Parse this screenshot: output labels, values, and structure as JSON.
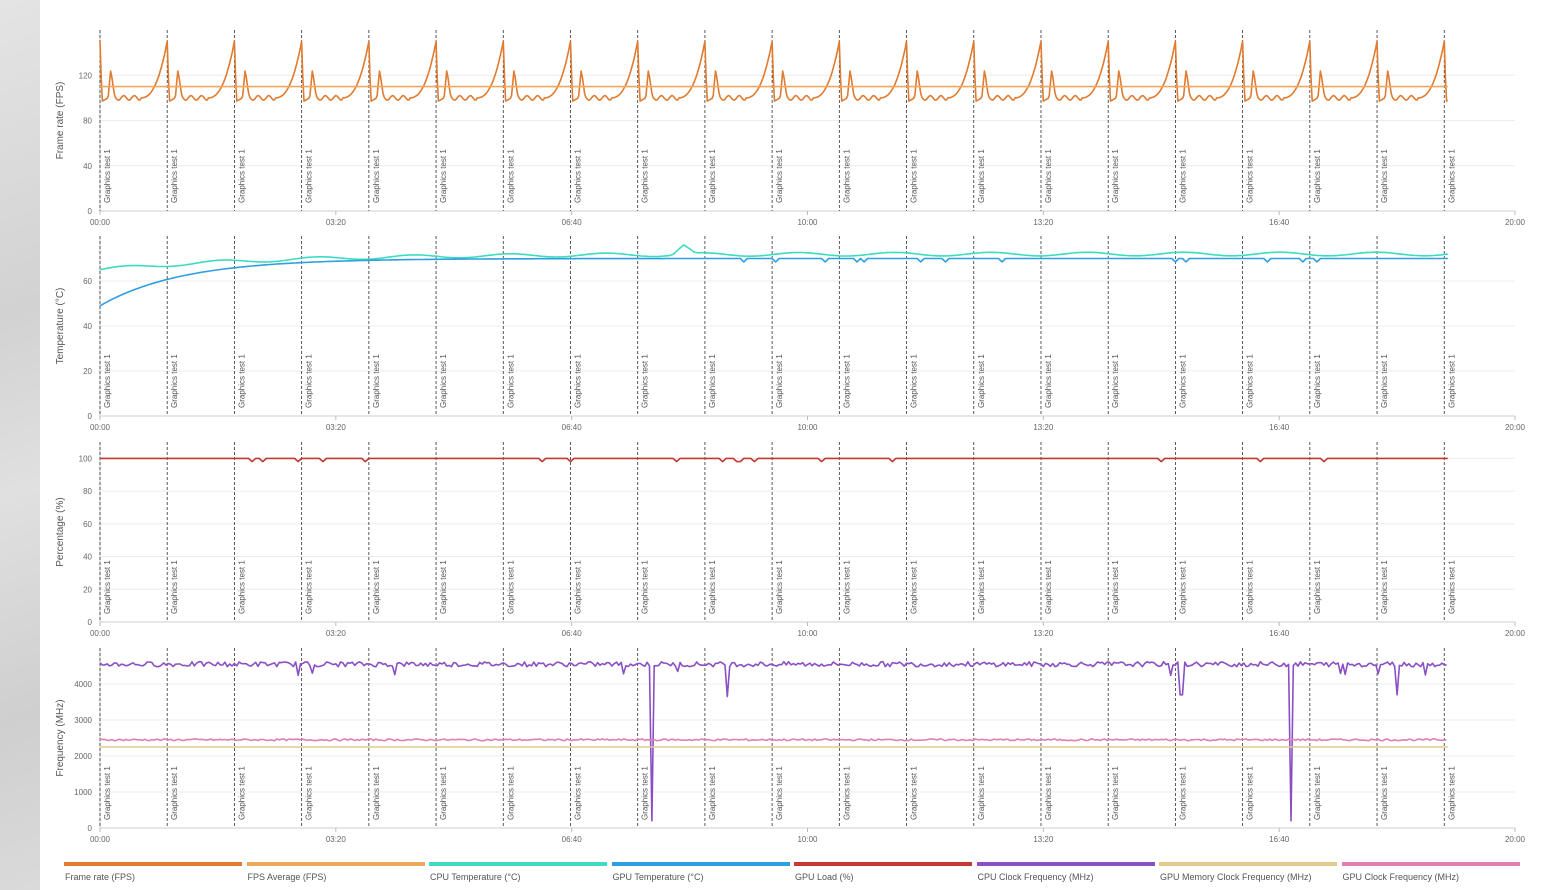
{
  "chart_data": {
    "type": "line",
    "xlabel": "",
    "x_ticks": [
      "00:00",
      "03:20",
      "06:40",
      "10:00",
      "13:20",
      "16:40",
      "20:00"
    ],
    "xlim_seconds": [
      0,
      1200
    ],
    "markers": {
      "label": "Graphics test 1",
      "times_seconds": [
        0,
        57,
        114,
        171,
        228,
        285,
        342,
        399,
        456,
        513,
        570,
        627,
        684,
        741,
        798,
        855,
        912,
        969,
        1026,
        1083,
        1140
      ]
    },
    "panels": [
      {
        "ylabel": "Frame rate (FPS)",
        "ylim": [
          0,
          160
        ],
        "yticks": [
          0,
          40,
          80,
          120
        ],
        "series": [
          {
            "name": "Frame rate (FPS)",
            "color": "#e07b30",
            "pattern": "fps",
            "min": 95,
            "max": 150
          },
          {
            "name": "FPS Average (FPS)",
            "color": "#f0a860",
            "constant": 110
          }
        ]
      },
      {
        "ylabel": "Temperature (°C)",
        "ylim": [
          0,
          80
        ],
        "yticks": [
          0,
          20,
          40,
          60
        ],
        "series": [
          {
            "name": "CPU Temperature (°C)",
            "color": "#3ddbc0",
            "pattern": "cputemp",
            "start": 65,
            "end": 72
          },
          {
            "name": "GPU Temperature (°C)",
            "color": "#2f9fe0",
            "pattern": "gputemp",
            "start": 49,
            "end": 70
          }
        ]
      },
      {
        "ylabel": "Percentage (%)",
        "ylim": [
          0,
          110
        ],
        "yticks": [
          0,
          20,
          40,
          60,
          80,
          100
        ],
        "series": [
          {
            "name": "GPU Load (%)",
            "color": "#c23a32",
            "pattern": "load",
            "value": 99
          }
        ]
      },
      {
        "ylabel": "Frequency (MHz)",
        "ylim": [
          0,
          5000
        ],
        "yticks": [
          0,
          1000,
          2000,
          3000,
          4000
        ],
        "series": [
          {
            "name": "CPU Clock Frequency (MHz)",
            "color": "#8b4fc4",
            "pattern": "cpuclock",
            "value": 4550,
            "dips": [
              [
                468,
                200
              ],
              [
                532,
                3650
              ],
              [
                917,
                3700
              ],
              [
                1010,
                200
              ],
              [
                1100,
                3700
              ]
            ]
          },
          {
            "name": "GPU Memory Clock Frequency (MHz)",
            "color": "#e6c98e",
            "constant": 2250
          },
          {
            "name": "GPU Clock Frequency (MHz)",
            "color": "#e07fb0",
            "pattern": "gpuclock",
            "value": 2450
          }
        ]
      }
    ],
    "data_end_seconds": 1143
  },
  "legend": [
    {
      "label": "Frame rate (FPS)",
      "color": "#e07b30"
    },
    {
      "label": "FPS Average (FPS)",
      "color": "#f0a860"
    },
    {
      "label": "CPU Temperature (°C)",
      "color": "#3ddbc0"
    },
    {
      "label": "GPU Temperature (°C)",
      "color": "#2f9fe0"
    },
    {
      "label": "GPU Load (%)",
      "color": "#c23a32"
    },
    {
      "label": "CPU Clock Frequency (MHz)",
      "color": "#8b4fc4"
    },
    {
      "label": "GPU Memory Clock Frequency (MHz)",
      "color": "#e6c98e"
    },
    {
      "label": "GPU Clock Frequency (MHz)",
      "color": "#e07fb0"
    }
  ]
}
